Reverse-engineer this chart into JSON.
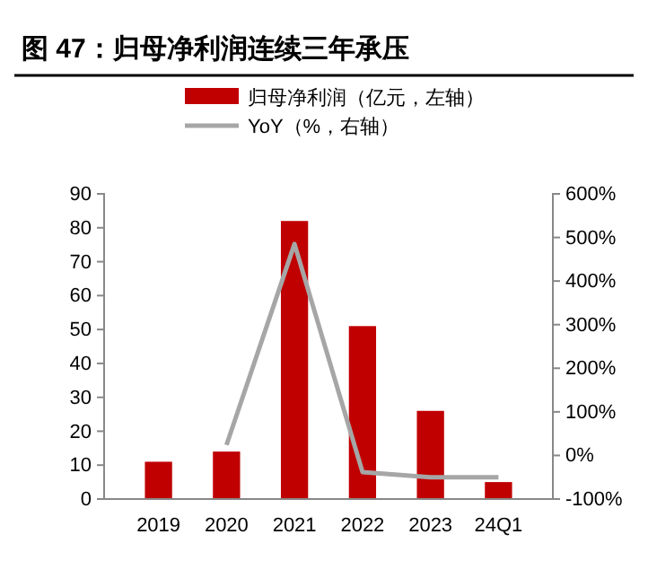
{
  "chart_data": {
    "type": "bar",
    "title": "图 47：归母净利润连续三年承压",
    "categories": [
      "2019",
      "2020",
      "2021",
      "2022",
      "2023",
      "24Q1"
    ],
    "series": [
      {
        "name": "归母净利润（亿元，左轴）",
        "color": "#c00000",
        "values": [
          11,
          14,
          82,
          51,
          26,
          5
        ]
      },
      {
        "name": "YoY（%，右轴）",
        "type": "line",
        "axis": "y2",
        "color": "#a6a6a6",
        "values": [
          null,
          24,
          485,
          -38,
          -50,
          -50
        ]
      }
    ],
    "ylim": [
      0,
      90
    ],
    "yticks": [
      0,
      10,
      20,
      30,
      40,
      50,
      60,
      70,
      80,
      90
    ],
    "y2lim": [
      -100,
      600
    ],
    "y2ticks": [
      {
        "value": -100,
        "label": "-100%"
      },
      {
        "value": 0,
        "label": "0%"
      },
      {
        "value": 100,
        "label": "100%"
      },
      {
        "value": 200,
        "label": "200%"
      },
      {
        "value": 300,
        "label": "300%"
      },
      {
        "value": 400,
        "label": "400%"
      },
      {
        "value": 500,
        "label": "500%"
      },
      {
        "value": 600,
        "label": "600%"
      }
    ],
    "grid": false,
    "legend": "top",
    "marker": "none",
    "line_style": "solid"
  }
}
